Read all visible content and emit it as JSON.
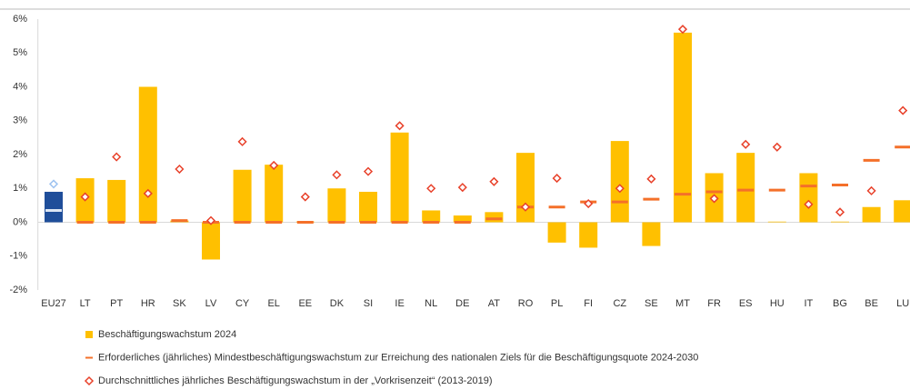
{
  "chart_data": {
    "type": "bar",
    "categories": [
      "EU27",
      "LT",
      "PT",
      "HR",
      "SK",
      "LV",
      "CY",
      "EL",
      "EE",
      "DK",
      "SI",
      "IE",
      "NL",
      "DE",
      "AT",
      "RO",
      "PL",
      "FI",
      "CZ",
      "SE",
      "MT",
      "FR",
      "ES",
      "HU",
      "IT",
      "BG",
      "BE",
      "LU"
    ],
    "highlight_category": "EU27",
    "series": [
      {
        "name": "Beschäftigungswachstum 2024",
        "mark": "bar",
        "color": "#ffc000",
        "highlight_color": "#1f4e9a",
        "values": [
          0.9,
          1.3,
          1.25,
          4.0,
          0.05,
          -1.1,
          1.55,
          1.7,
          0.02,
          1.0,
          0.9,
          2.65,
          0.35,
          0.2,
          0.3,
          2.05,
          -0.6,
          -0.75,
          2.4,
          -0.7,
          5.6,
          1.45,
          2.05,
          0.02,
          1.45,
          0.02,
          0.45,
          0.65
        ]
      },
      {
        "name": "Erforderliches (jährliches) Mindestbeschäftigungswachstum zur Erreichung des nationalen Ziels für die Beschäftigungsquote 2024-2030",
        "mark": "dash",
        "color": "#f4702a",
        "highlight_color": "#dce6f4",
        "values": [
          0.35,
          0,
          0,
          0,
          0.05,
          0,
          0,
          0,
          0,
          0,
          0,
          0,
          0,
          0,
          0.1,
          0.45,
          0.45,
          0.6,
          0.6,
          0.68,
          0.83,
          0.9,
          0.95,
          0.95,
          1.07,
          1.1,
          1.83,
          2.22
        ]
      },
      {
        "name": "Durchschnittliches jährliches Beschäftigungswachstum in der „Vorkrisenzeit“ (2013-2019)",
        "mark": "diamond",
        "color": "#e8412a",
        "highlight_color": "#9ec3f0",
        "values": [
          1.13,
          0.75,
          1.93,
          0.85,
          1.57,
          0.05,
          2.38,
          1.68,
          0.75,
          1.4,
          1.5,
          2.85,
          1.0,
          1.03,
          1.2,
          0.45,
          1.3,
          0.55,
          1.0,
          1.28,
          5.7,
          0.7,
          2.3,
          2.22,
          0.53,
          0.3,
          0.93,
          3.3
        ]
      }
    ],
    "ylim": [
      -2,
      6
    ],
    "yticks": [
      {
        "value": -2,
        "label": "-2%"
      },
      {
        "value": -1,
        "label": "-1%"
      },
      {
        "value": 0,
        "label": "0%"
      },
      {
        "value": 1,
        "label": "1%"
      },
      {
        "value": 2,
        "label": "2%"
      },
      {
        "value": 3,
        "label": "3%"
      },
      {
        "value": 4,
        "label": "4%"
      },
      {
        "value": 5,
        "label": "5%"
      },
      {
        "value": 6,
        "label": "6%"
      }
    ],
    "grid": false
  }
}
